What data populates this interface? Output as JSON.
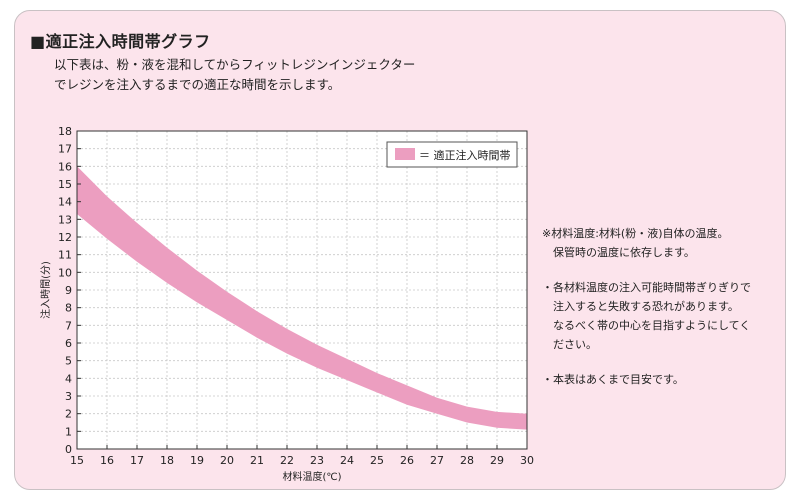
{
  "header": {
    "title": "■適正注入時間帯グラフ",
    "intro_lines": [
      "以下表は、粉・液を混和してからフィットレジンインジェクター",
      "でレジンを注入するまでの適正な時間を示します。"
    ]
  },
  "chart_data": {
    "type": "area",
    "title": "",
    "xlabel": "材料温度(℃)",
    "ylabel": "注入時間(分)",
    "xlim": [
      15,
      30
    ],
    "ylim": [
      0,
      18
    ],
    "x_ticks": [
      "15",
      "16",
      "17",
      "18",
      "19",
      "20",
      "21",
      "22",
      "23",
      "24",
      "25",
      "26",
      "27",
      "28",
      "29",
      "30"
    ],
    "y_ticks": [
      "0",
      "1",
      "2",
      "3",
      "4",
      "5",
      "6",
      "7",
      "8",
      "9",
      "10",
      "11",
      "12",
      "13",
      "14",
      "15",
      "16",
      "17",
      "18"
    ],
    "grid": true,
    "legend_position": "top-right",
    "legend_label": "＝ 適正注入時間帯",
    "series": [
      {
        "name": "適正注入時間帯",
        "color": "#ec9ec0",
        "x": [
          15,
          16,
          17,
          18,
          19,
          20,
          21,
          22,
          23,
          24,
          25,
          26,
          27,
          28,
          29,
          30
        ],
        "upper": [
          16.0,
          14.3,
          12.8,
          11.4,
          10.1,
          8.9,
          7.8,
          6.8,
          5.9,
          5.1,
          4.3,
          3.6,
          2.9,
          2.4,
          2.1,
          2.0
        ],
        "lower": [
          13.3,
          11.9,
          10.6,
          9.4,
          8.3,
          7.3,
          6.3,
          5.4,
          4.6,
          3.9,
          3.2,
          2.5,
          2.0,
          1.5,
          1.2,
          1.1
        ]
      }
    ]
  },
  "notes": [
    {
      "lines": [
        "※材料温度:材料(粉・液)自体の温度。",
        "　保管時の温度に依存します。"
      ]
    },
    {
      "lines": [
        "・各材料温度の注入可能時間帯ぎりぎりで",
        "　注入すると失敗する恐れがあります。",
        "　なるべく帯の中心を目指すようにしてく",
        "　ださい。"
      ]
    },
    {
      "lines": [
        "・本表はあくまで目安です。"
      ]
    }
  ]
}
